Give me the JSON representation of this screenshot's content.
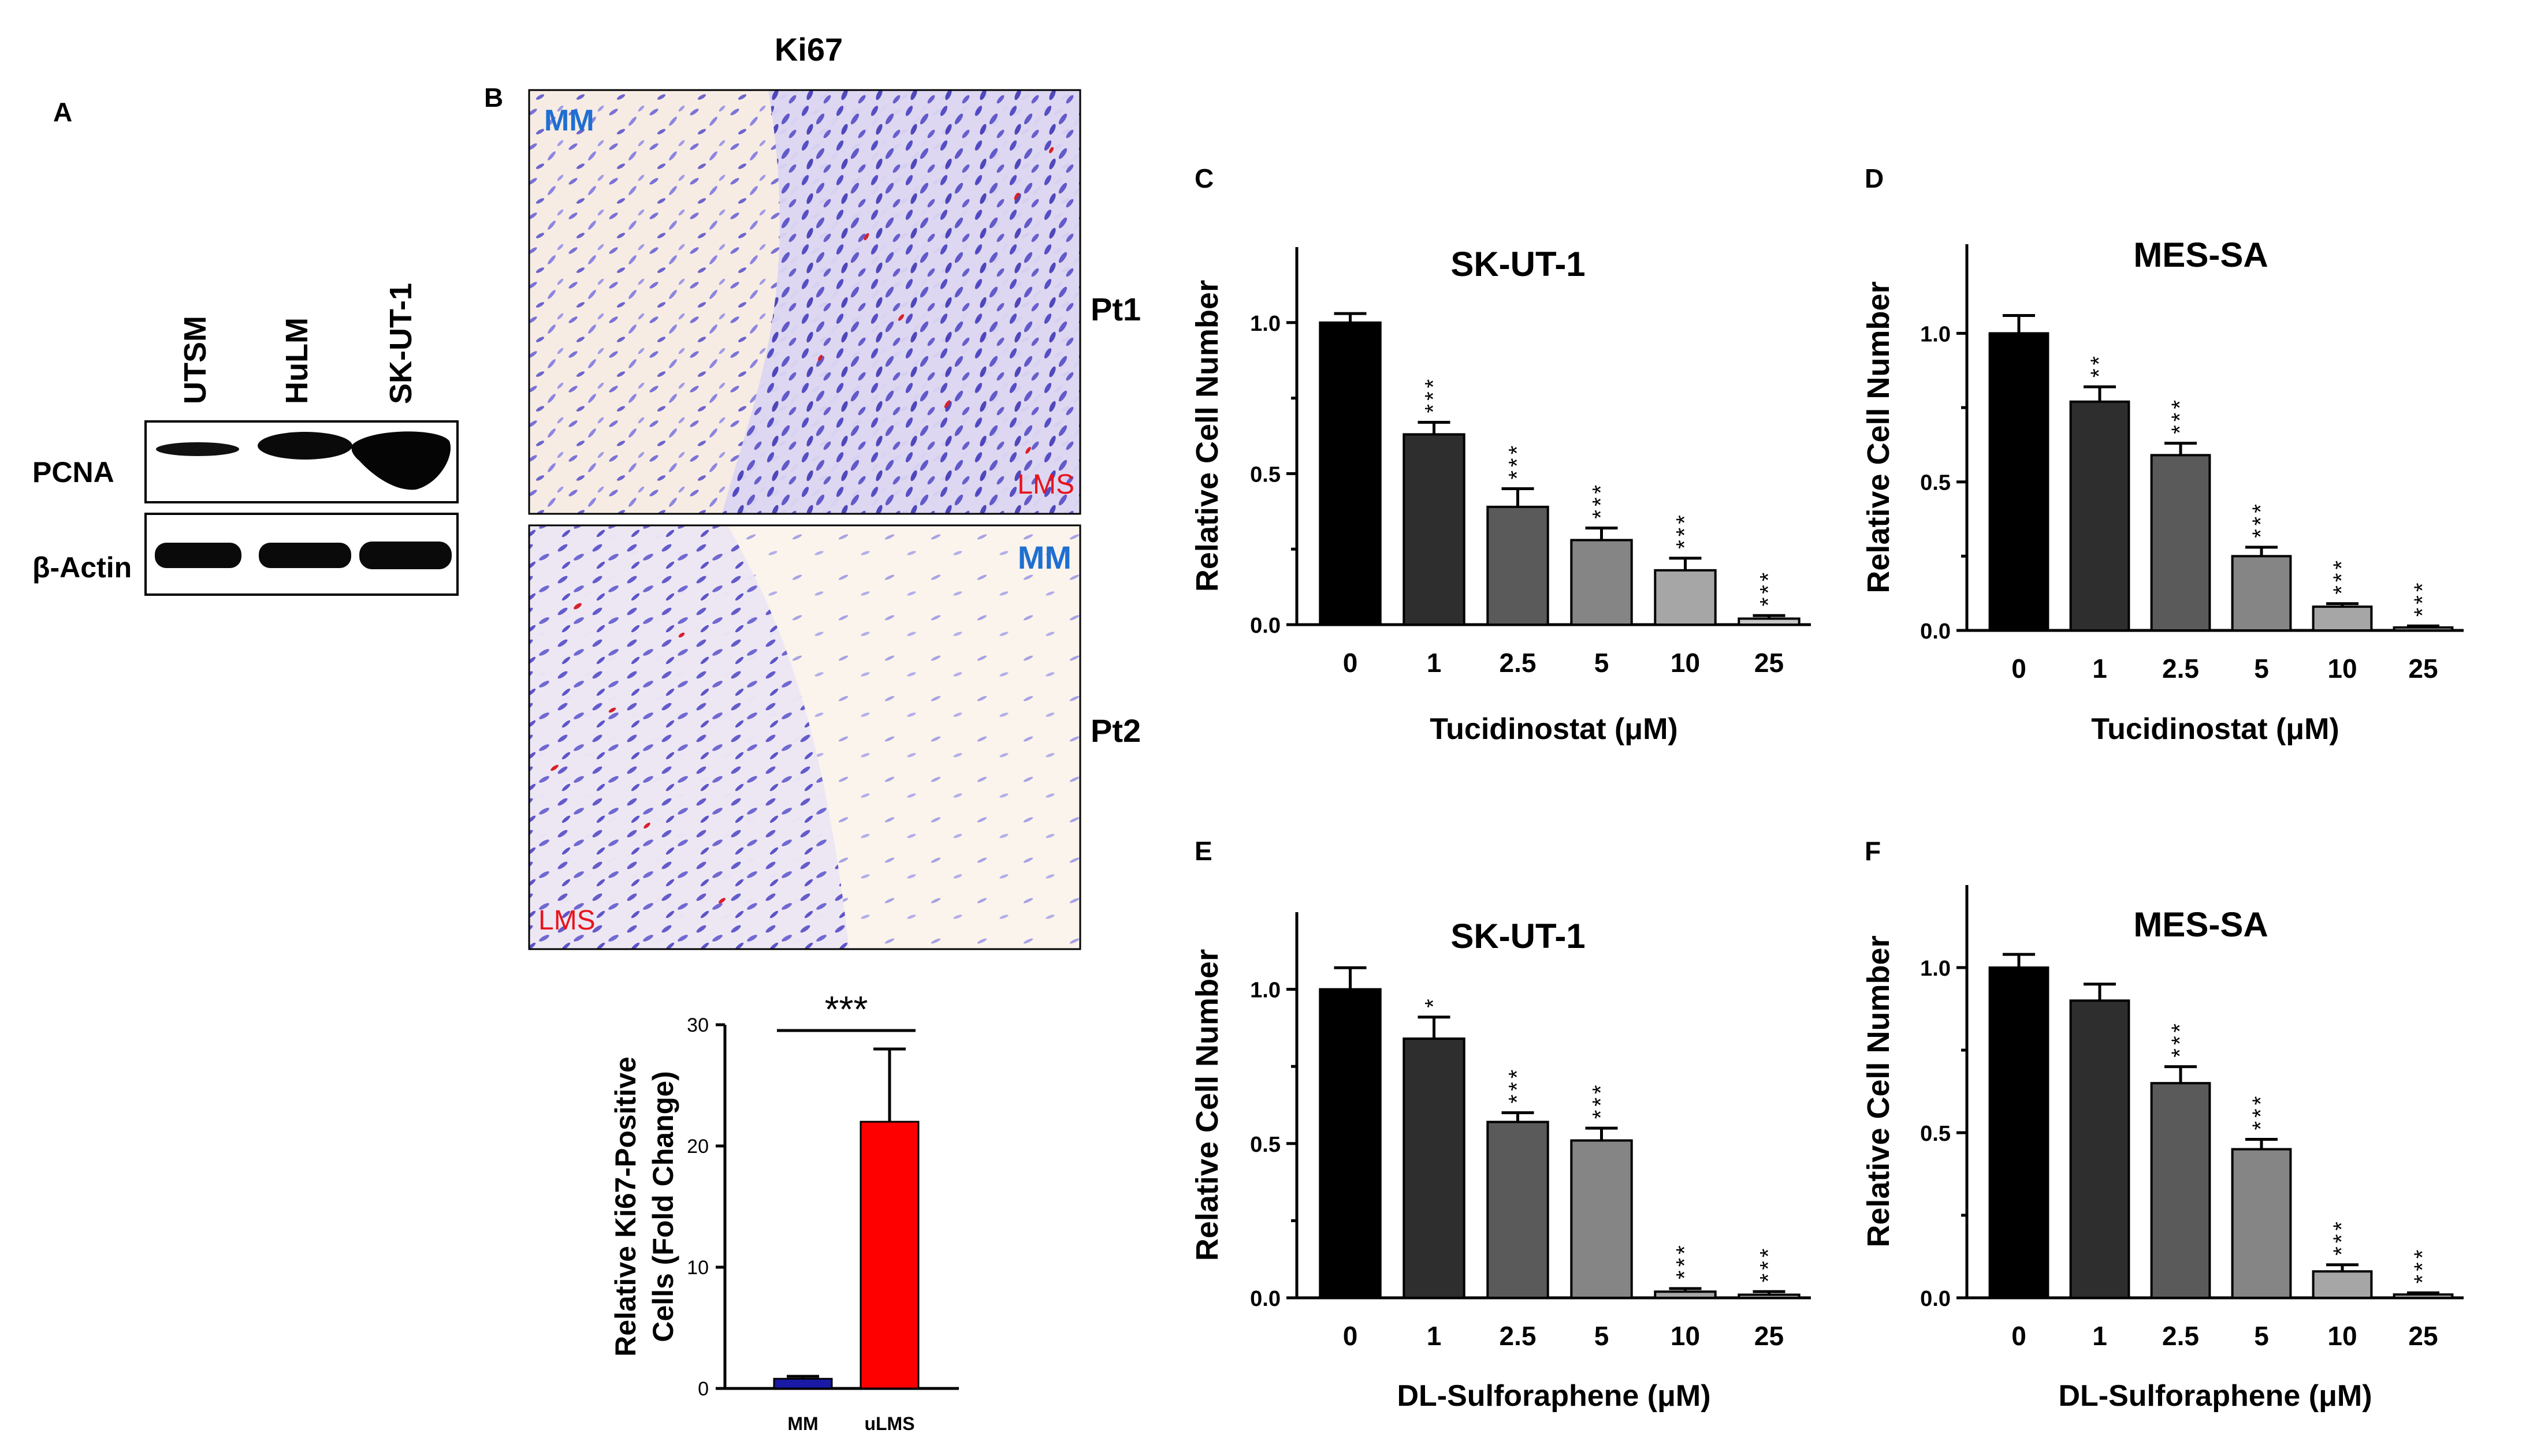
{
  "panels": {
    "A": "A",
    "B": "B",
    "C": "C",
    "D": "D",
    "E": "E",
    "F": "F"
  },
  "western_blot": {
    "lanes": [
      "UTSM",
      "HuLM",
      "SK-UT-1"
    ],
    "rows": [
      "PCNA",
      "β-Actin"
    ]
  },
  "ki67": {
    "title": "Ki67",
    "patients": [
      "Pt1",
      "Pt2"
    ],
    "pt1_labels": {
      "mm": "MM",
      "lms": "LMS"
    },
    "pt2_labels": {
      "mm": "MM",
      "lms": "LMS"
    }
  },
  "colors": {
    "mm_label": "#1f6fd1",
    "lms_label": "#e8141c",
    "bar_mm": "#1a1aa6",
    "bar_ulms": "#ff0000",
    "gray_scale": [
      "#000000",
      "#2e2e2e",
      "#5a5a5a",
      "#858585",
      "#a6a6a6",
      "#c8c8c8"
    ]
  },
  "chart_data": [
    {
      "id": "B-bar",
      "type": "bar",
      "categories": [
        "MM",
        "uLMS"
      ],
      "values": [
        0.8,
        22
      ],
      "errors": [
        0.2,
        6
      ],
      "ylabel_line1": "Relative Ki67-Positive",
      "ylabel_line2": "Cells (Fold Change)",
      "ylim": [
        0,
        30
      ],
      "yticks": [
        "0",
        "10",
        "20",
        "30"
      ],
      "significance": "***"
    },
    {
      "id": "C",
      "type": "bar",
      "title": "SK-UT-1",
      "categories": [
        "0",
        "1",
        "2.5",
        "5",
        "10",
        "25"
      ],
      "values": [
        1.0,
        0.63,
        0.39,
        0.28,
        0.18,
        0.02
      ],
      "errors": [
        0.03,
        0.04,
        0.06,
        0.04,
        0.04,
        0.01
      ],
      "significance": [
        "",
        "***",
        "***",
        "***",
        "***",
        "***"
      ],
      "xlabel": "Tucidinostat (μM)",
      "ylabel": "Relative Cell Number",
      "ylim": [
        0,
        1.25
      ],
      "yticks": [
        "0.0",
        "0.5",
        "1.0"
      ]
    },
    {
      "id": "D",
      "type": "bar",
      "title": "MES-SA",
      "categories": [
        "0",
        "1",
        "2.5",
        "5",
        "10",
        "25"
      ],
      "values": [
        1.0,
        0.77,
        0.59,
        0.25,
        0.08,
        0.01
      ],
      "errors": [
        0.06,
        0.05,
        0.04,
        0.03,
        0.01,
        0.005
      ],
      "significance": [
        "",
        "**",
        "***",
        "***",
        "***",
        "***"
      ],
      "xlabel": "Tucidinostat (μM)",
      "ylabel": "Relative Cell Number",
      "ylim": [
        0,
        1.3
      ],
      "yticks": [
        "0.0",
        "0.5",
        "1.0"
      ]
    },
    {
      "id": "E",
      "type": "bar",
      "title": "SK-UT-1",
      "categories": [
        "0",
        "1",
        "2.5",
        "5",
        "10",
        "25"
      ],
      "values": [
        1.0,
        0.84,
        0.57,
        0.51,
        0.02,
        0.01
      ],
      "errors": [
        0.07,
        0.07,
        0.03,
        0.04,
        0.01,
        0.01
      ],
      "significance": [
        "",
        "*",
        "***",
        "***",
        "***",
        "***"
      ],
      "xlabel": "DL-Sulforaphene (μM)",
      "ylabel": "Relative Cell Number",
      "ylim": [
        0,
        1.25
      ],
      "yticks": [
        "0.0",
        "0.5",
        "1.0"
      ]
    },
    {
      "id": "F",
      "type": "bar",
      "title": "MES-SA",
      "categories": [
        "0",
        "1",
        "2.5",
        "5",
        "10",
        "25"
      ],
      "values": [
        1.0,
        0.9,
        0.65,
        0.45,
        0.08,
        0.01
      ],
      "errors": [
        0.04,
        0.05,
        0.05,
        0.03,
        0.02,
        0.005
      ],
      "significance": [
        "",
        "",
        "***",
        "***",
        "***",
        "***"
      ],
      "xlabel": "DL-Sulforaphene (μM)",
      "ylabel": "Relative Cell Number",
      "ylim": [
        0,
        1.25
      ],
      "yticks": [
        "0.0",
        "0.5",
        "1.0"
      ]
    }
  ]
}
